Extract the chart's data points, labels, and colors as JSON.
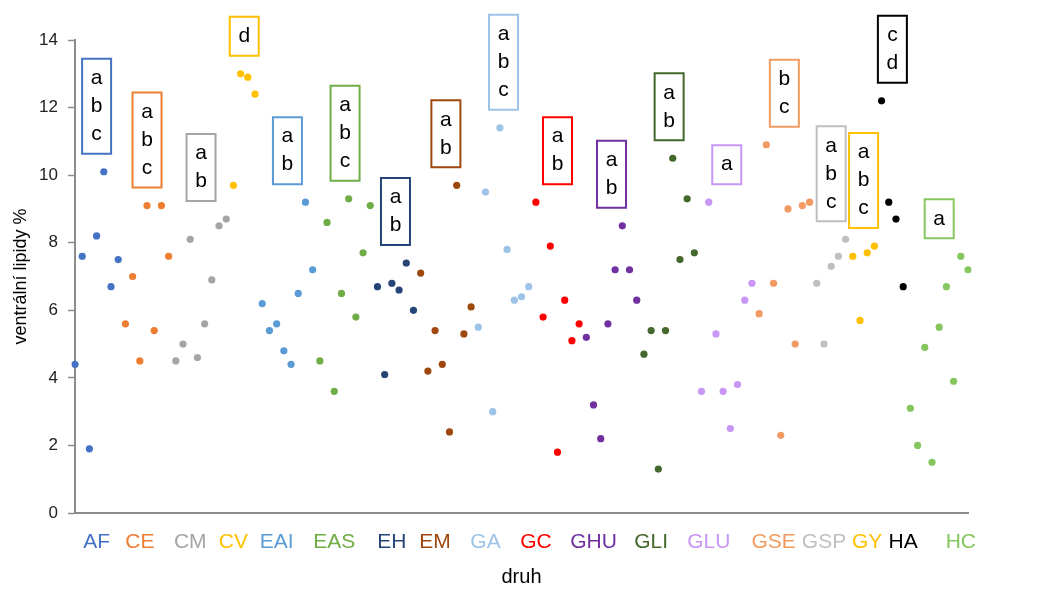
{
  "chart_data": {
    "type": "scatter",
    "xlabel": "druh",
    "ylabel": "ventrální lipidy %",
    "marker": "circle",
    "ylim": [
      0,
      14
    ],
    "yticks": [
      0,
      2,
      4,
      6,
      8,
      10,
      12,
      14
    ],
    "categories": [
      null,
      null,
      null,
      "AF",
      null,
      null,
      null,
      null,
      null,
      "CE",
      null,
      null,
      null,
      null,
      null,
      null,
      "CM",
      null,
      null,
      null,
      null,
      null,
      "CV",
      null,
      null,
      null,
      null,
      null,
      "EAI",
      null,
      null,
      null,
      null,
      null,
      null,
      null,
      "EAS",
      null,
      null,
      null,
      null,
      null,
      null,
      null,
      "EH",
      null,
      null,
      null,
      null,
      null,
      "EM",
      null,
      null,
      null,
      null,
      null,
      null,
      "GA",
      null,
      null,
      null,
      null,
      null,
      null,
      "GC",
      null,
      null,
      null,
      null,
      null,
      null,
      null,
      "GHU",
      null,
      null,
      null,
      null,
      null,
      null,
      null,
      "GLI",
      null,
      null,
      null,
      null,
      null,
      null,
      null,
      "GLU",
      null,
      null,
      null,
      null,
      null,
      null,
      null,
      null,
      "GSE",
      null,
      null,
      null,
      null,
      null,
      null,
      "GSP",
      null,
      null,
      null,
      null,
      null,
      "GY",
      null,
      null,
      null,
      null,
      "HA",
      null,
      null,
      null,
      null,
      null,
      null,
      null,
      "HC",
      null
    ],
    "values": [
      4.4,
      7.6,
      1.9,
      8.2,
      10.1,
      6.7,
      7.5,
      5.6,
      7.0,
      4.5,
      9.1,
      5.4,
      9.1,
      7.6,
      4.5,
      5.0,
      8.1,
      4.6,
      5.6,
      6.9,
      8.5,
      8.7,
      9.7,
      13.0,
      12.9,
      12.4,
      6.2,
      5.4,
      5.6,
      4.8,
      4.4,
      6.5,
      9.2,
      7.2,
      4.5,
      8.6,
      3.6,
      6.5,
      9.3,
      5.8,
      7.7,
      9.1,
      6.7,
      4.1,
      6.8,
      6.6,
      7.4,
      6.0,
      7.1,
      4.2,
      5.4,
      4.4,
      2.4,
      9.7,
      5.3,
      6.1,
      5.5,
      9.5,
      3.0,
      11.4,
      7.8,
      6.3,
      6.4,
      6.7,
      9.2,
      5.8,
      7.9,
      1.8,
      6.3,
      5.1,
      5.6,
      5.2,
      3.2,
      2.2,
      5.6,
      7.2,
      8.5,
      7.2,
      6.3,
      4.7,
      5.4,
      1.3,
      5.4,
      10.5,
      7.5,
      9.3,
      7.7,
      3.6,
      9.2,
      5.3,
      3.6,
      2.5,
      3.8,
      6.3,
      6.8,
      5.9,
      10.9,
      6.8,
      2.3,
      9.0,
      5.0,
      9.1,
      9.2,
      6.8,
      5.0,
      7.3,
      7.6,
      8.1,
      7.6,
      5.7,
      7.7,
      7.9,
      12.2,
      9.2,
      8.7,
      6.7,
      3.1,
      2.0,
      4.9,
      1.5,
      5.5,
      6.7,
      3.9,
      7.6,
      7.2
    ],
    "colors": [
      "#4472c4",
      "#4472c4",
      "#4472c4",
      "#4472c4",
      "#4472c4",
      "#4472c4",
      "#4472c4",
      "#ed7d31",
      "#ed7d31",
      "#ed7d31",
      "#ed7d31",
      "#ed7d31",
      "#ed7d31",
      "#ed7d31",
      "#a5a5a5",
      "#a5a5a5",
      "#a5a5a5",
      "#a5a5a5",
      "#a5a5a5",
      "#a5a5a5",
      "#a5a5a5",
      "#a5a5a5",
      "#ffc000",
      "#ffc000",
      "#ffc000",
      "#ffc000",
      "#5b9bd5",
      "#5b9bd5",
      "#5b9bd5",
      "#5b9bd5",
      "#5b9bd5",
      "#5b9bd5",
      "#5b9bd5",
      "#5b9bd5",
      "#70ad47",
      "#70ad47",
      "#70ad47",
      "#70ad47",
      "#70ad47",
      "#70ad47",
      "#70ad47",
      "#70ad47",
      "#264478",
      "#264478",
      "#264478",
      "#264478",
      "#264478",
      "#264478",
      "#9e480e",
      "#9e480e",
      "#9e480e",
      "#9e480e",
      "#9e480e",
      "#9e480e",
      "#9e480e",
      "#9e480e",
      "#9dc3e6",
      "#9dc3e6",
      "#9dc3e6",
      "#9dc3e6",
      "#9dc3e6",
      "#9dc3e6",
      "#9dc3e6",
      "#9dc3e6",
      "#ff0000",
      "#ff0000",
      "#ff0000",
      "#ff0000",
      "#ff0000",
      "#ff0000",
      "#ff0000",
      "#7030a0",
      "#7030a0",
      "#7030a0",
      "#7030a0",
      "#7030a0",
      "#7030a0",
      "#7030a0",
      "#7030a0",
      "#43682b",
      "#43682b",
      "#43682b",
      "#43682b",
      "#43682b",
      "#43682b",
      "#43682b",
      "#43682b",
      "#c896f5",
      "#c896f5",
      "#c896f5",
      "#c896f5",
      "#c896f5",
      "#c896f5",
      "#c896f5",
      "#c896f5",
      "#f19a62",
      "#f19a62",
      "#f19a62",
      "#f19a62",
      "#f19a62",
      "#f19a62",
      "#f19a62",
      "#f19a62",
      "#bfbfbf",
      "#bfbfbf",
      "#bfbfbf",
      "#bfbfbf",
      "#bfbfbf",
      "#ffc000",
      "#ffc000",
      "#ffc000",
      "#ffc000",
      "#000000",
      "#000000",
      "#000000",
      "#000000",
      "#85c65f",
      "#85c65f",
      "#85c65f",
      "#85c65f",
      "#85c65f",
      "#85c65f",
      "#85c65f",
      "#85c65f",
      "#85c65f"
    ],
    "annotations": [
      "a\nb\nc",
      "a\nb\nc",
      "a\nb",
      "d",
      "a\nb",
      "a\nb\nc",
      "a\nb",
      "a\nb",
      "a\nb\nc",
      "a\nb",
      "a\nb",
      "a\nb",
      "a",
      "b\nc",
      "a\nb\nc",
      "a\nb\nc",
      "c\nd",
      "a"
    ]
  }
}
